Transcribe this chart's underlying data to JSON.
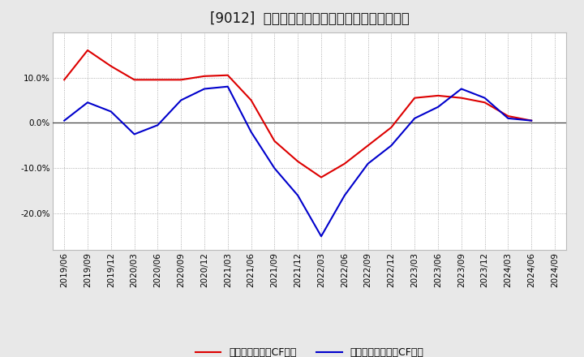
{
  "title": "[9012]  有利子負債キャッシュフロー比率の推移",
  "x_labels": [
    "2019/06",
    "2019/09",
    "2019/12",
    "2020/03",
    "2020/06",
    "2020/09",
    "2020/12",
    "2021/03",
    "2021/06",
    "2021/09",
    "2021/12",
    "2022/03",
    "2022/06",
    "2022/09",
    "2022/12",
    "2023/03",
    "2023/06",
    "2023/09",
    "2023/12",
    "2024/03",
    "2024/06",
    "2024/09"
  ],
  "red_values": [
    9.5,
    16.0,
    12.5,
    9.5,
    9.5,
    9.5,
    10.3,
    10.5,
    5.0,
    -4.0,
    -8.5,
    -12.0,
    -9.0,
    -5.0,
    -1.0,
    5.5,
    6.0,
    5.5,
    4.5,
    1.5,
    0.5,
    null
  ],
  "blue_values": [
    0.5,
    4.5,
    2.5,
    -2.5,
    -0.5,
    5.0,
    7.5,
    8.0,
    -2.0,
    -10.0,
    -16.0,
    -25.0,
    -16.0,
    -9.0,
    -5.0,
    1.0,
    3.5,
    7.5,
    5.5,
    1.0,
    0.5,
    null
  ],
  "red_label": "有利子負債営業CF比率",
  "blue_label": "有利子負債フリーCF比率",
  "red_color": "#dd0000",
  "blue_color": "#0000cc",
  "bg_color": "#e8e8e8",
  "plot_bg_color": "#ffffff",
  "grid_color": "#999999",
  "zero_line_color": "#444444",
  "yticks": [
    -20.0,
    -10.0,
    0.0,
    10.0
  ],
  "ylim": [
    -28,
    20
  ],
  "title_fontsize": 12,
  "legend_fontsize": 9,
  "axis_fontsize": 7.5
}
